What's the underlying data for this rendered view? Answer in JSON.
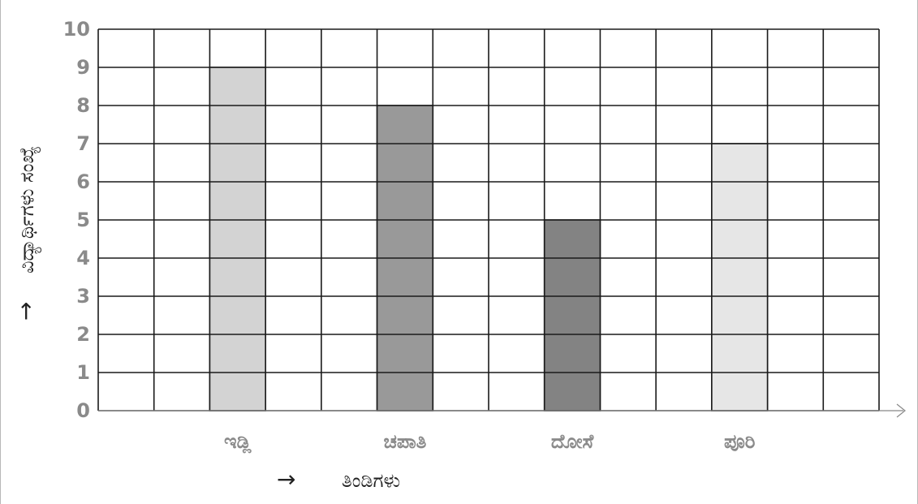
{
  "chart_data": {
    "type": "bar",
    "categories": [
      "ಇಡ್ಲಿ",
      "ಚಪಾತಿ",
      "ದೋಸೆ",
      "ಪೂರಿ"
    ],
    "values": [
      9,
      8,
      5,
      7
    ],
    "bar_colors": [
      "#d3d3d3",
      "#999999",
      "#838383",
      "#e6e6e6"
    ],
    "xlabel": "ತಿಂಡಿಗಳು",
    "ylabel": "ವಿದ್ಯಾರ್ಥಿಗಳು ಸಂಖ್ಯೆ",
    "ylim": [
      0,
      10
    ],
    "yticks": [
      "0",
      "1",
      "2",
      "3",
      "4",
      "5",
      "6",
      "7",
      "8",
      "9",
      "10"
    ],
    "grid": true
  },
  "arrows": {
    "x_label_arrow": "→",
    "y_label_arrow": "→"
  }
}
